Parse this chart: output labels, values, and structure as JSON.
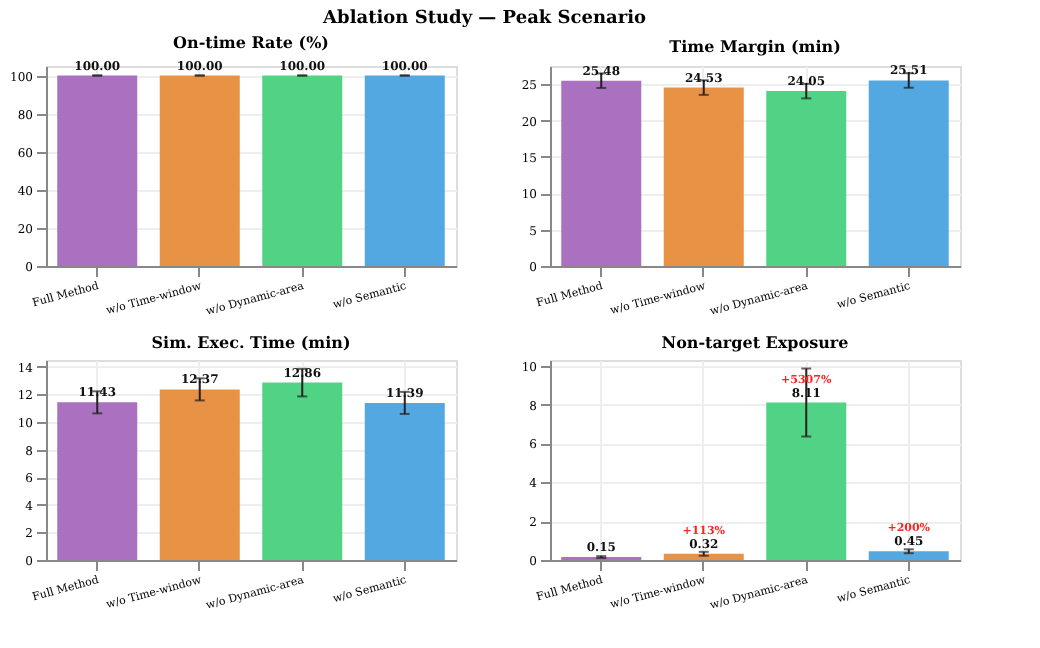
{
  "chart_data": [
    {
      "type": "bar",
      "title": "On-time Rate (%)",
      "annotations": [
        "Ablation Study — Peak Scenario"
      ],
      "categories": [
        "Full Method",
        "w/o Time-window",
        "w/o Dynamic-area",
        "w/o Semantic"
      ],
      "values": [
        100.0,
        100.0,
        100.0,
        100.0
      ],
      "value_labels": [
        "100.00",
        "100.00",
        "100.00",
        "100.00"
      ],
      "errors": [
        0,
        0,
        0,
        0
      ],
      "colors": [
        "#a569bd",
        "#e68c3a",
        "#48d17f",
        "#4aa3df"
      ],
      "ylim": [
        0,
        105
      ],
      "yticks": [
        0,
        20,
        40,
        60,
        80,
        100
      ],
      "grid": true
    },
    {
      "type": "bar",
      "title": "Time Margin (min)",
      "categories": [
        "Full Method",
        "w/o Time-window",
        "w/o Dynamic-area",
        "w/o Semantic"
      ],
      "values": [
        25.48,
        24.53,
        24.05,
        25.51
      ],
      "value_labels": [
        "25.48",
        "24.53",
        "24.05",
        "25.51"
      ],
      "errors": [
        1.0,
        1.0,
        1.0,
        1.0
      ],
      "colors": [
        "#a569bd",
        "#e68c3a",
        "#48d17f",
        "#4aa3df"
      ],
      "ylim": [
        0,
        27.5
      ],
      "yticks": [
        0,
        5,
        10,
        15,
        20,
        25
      ],
      "grid": true
    },
    {
      "type": "bar",
      "title": "Sim. Exec. Time (min)",
      "categories": [
        "Full Method",
        "w/o Time-window",
        "w/o Dynamic-area",
        "w/o Semantic"
      ],
      "values": [
        11.43,
        12.37,
        12.86,
        11.39
      ],
      "value_labels": [
        "11.43",
        "12.37",
        "12.86",
        "11.39"
      ],
      "errors": [
        0.8,
        0.8,
        1.0,
        0.8
      ],
      "colors": [
        "#a569bd",
        "#e68c3a",
        "#48d17f",
        "#4aa3df"
      ],
      "ylim": [
        0,
        14.5
      ],
      "yticks": [
        0,
        2,
        4,
        6,
        8,
        10,
        12,
        14
      ],
      "grid": true
    },
    {
      "type": "bar",
      "title": "Non-target Exposure",
      "categories": [
        "Full Method",
        "w/o Time-window",
        "w/o Dynamic-area",
        "w/o Semantic"
      ],
      "values": [
        0.15,
        0.32,
        8.11,
        0.45
      ],
      "value_labels": [
        "0.15",
        "0.32",
        "8.11",
        "0.45"
      ],
      "errors": [
        0.05,
        0.1,
        1.75,
        0.1
      ],
      "colors": [
        "#a569bd",
        "#e68c3a",
        "#48d17f",
        "#4aa3df"
      ],
      "ylim": [
        0,
        10.3
      ],
      "yticks": [
        0,
        2,
        4,
        6,
        8,
        10
      ],
      "grid": true,
      "annotations": [
        {
          "text": "+113%",
          "x": "w/o Time-window",
          "y": 0.32
        },
        {
          "text": "+5307%",
          "x": "w/o Dynamic-area",
          "y": 8.11
        },
        {
          "text": "+200%",
          "x": "w/o Semantic",
          "y": 0.45
        }
      ]
    }
  ]
}
